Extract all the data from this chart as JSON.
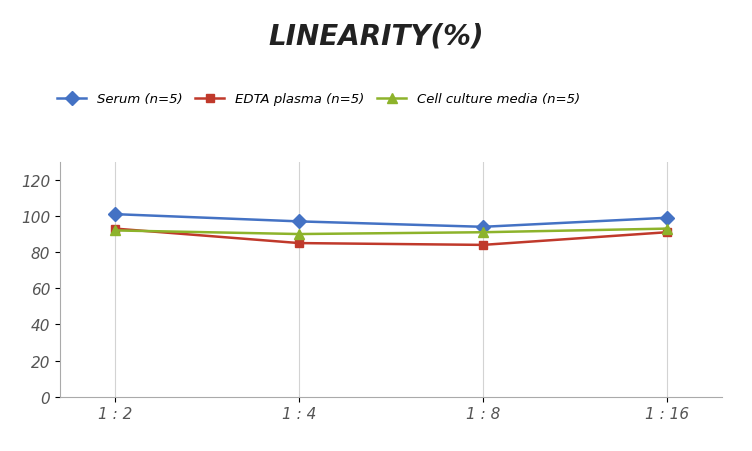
{
  "title": "LINEARITY(%)",
  "x_labels": [
    "1 : 2",
    "1 : 4",
    "1 : 8",
    "1 : 16"
  ],
  "x_positions": [
    0,
    1,
    2,
    3
  ],
  "series": [
    {
      "label": "Serum (n=5)",
      "values": [
        101,
        97,
        94,
        99
      ],
      "color": "#4472C4",
      "marker": "D",
      "marker_size": 7,
      "linewidth": 1.8
    },
    {
      "label": "EDTA plasma (n=5)",
      "values": [
        93,
        85,
        84,
        91
      ],
      "color": "#C0392B",
      "marker": "s",
      "marker_size": 6,
      "linewidth": 1.8
    },
    {
      "label": "Cell culture media (n=5)",
      "values": [
        92,
        90,
        91,
        93
      ],
      "color": "#8DB32B",
      "marker": "^",
      "marker_size": 7,
      "linewidth": 1.8
    }
  ],
  "ylim": [
    0,
    130
  ],
  "yticks": [
    0,
    20,
    40,
    60,
    80,
    100,
    120
  ],
  "background_color": "#ffffff",
  "grid_color": "#d3d3d3",
  "title_fontsize": 20,
  "legend_fontsize": 9.5,
  "tick_fontsize": 11
}
